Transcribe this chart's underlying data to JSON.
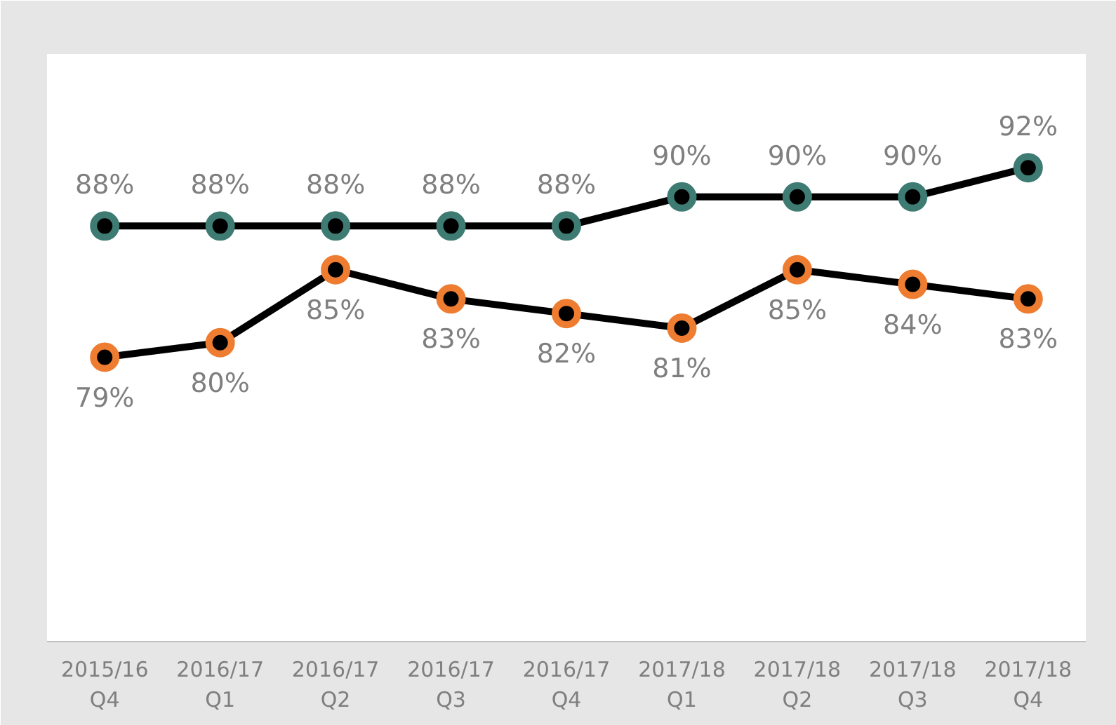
{
  "chart_data": {
    "type": "line",
    "categories": [
      "2015/16\nQ4",
      "2016/17\nQ1",
      "2016/17\nQ2",
      "2016/17\nQ3",
      "2016/17\nQ4",
      "2017/18\nQ1",
      "2017/18\nQ2",
      "2017/18\nQ3",
      "2017/18\nQ4"
    ],
    "series": [
      {
        "color": "#3e7b73",
        "values": [
          88,
          88,
          88,
          88,
          88,
          90,
          90,
          90,
          92
        ],
        "value_labels": [
          "88%",
          "88%",
          "88%",
          "88%",
          "88%",
          "90%",
          "90%",
          "90%",
          "92%"
        ]
      },
      {
        "color": "#ee7d31",
        "values": [
          79,
          80,
          85,
          83,
          82,
          81,
          85,
          84,
          83
        ],
        "value_labels": [
          "79%",
          "80%",
          "85%",
          "83%",
          "82%",
          "81%",
          "85%",
          "84%",
          "83%"
        ]
      }
    ],
    "marker": "circle",
    "grid": false
  }
}
